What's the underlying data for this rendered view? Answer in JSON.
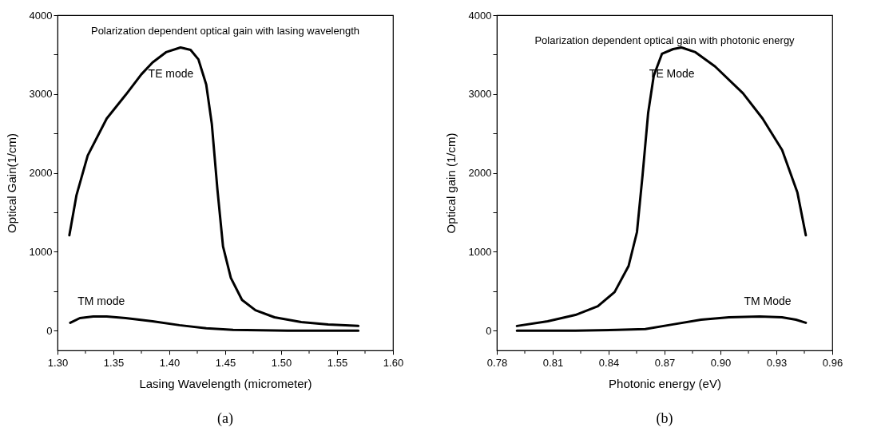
{
  "chart_data": [
    {
      "type": "line",
      "title": "Polarization dependent optical gain with lasing wavelength",
      "xlabel": "Lasing Wavelength (micrometer)",
      "ylabel": "Optical Gain(1/cm)",
      "series": [
        {
          "name": "TE mode",
          "color": "#000000",
          "x": [
            1.3106,
            1.317,
            1.327,
            1.344,
            1.361,
            1.375,
            1.385,
            1.397,
            1.41,
            1.419,
            1.426,
            1.433,
            1.438,
            1.443,
            1.448,
            1.455,
            1.465,
            1.477,
            1.494,
            1.518,
            1.542,
            1.569
          ],
          "values": [
            1210,
            1720,
            2220,
            2690,
            2990,
            3250,
            3400,
            3530,
            3590,
            3560,
            3440,
            3120,
            2620,
            1790,
            1070,
            670,
            390,
            260,
            170,
            110,
            80,
            60
          ]
        },
        {
          "name": "TM mode",
          "color": "#000000",
          "x": [
            1.3114,
            1.32,
            1.332,
            1.344,
            1.361,
            1.385,
            1.409,
            1.433,
            1.457,
            1.506,
            1.569
          ],
          "values": [
            100,
            160,
            180,
            180,
            160,
            120,
            70,
            30,
            10,
            0,
            0
          ]
        }
      ],
      "xlim": [
        1.3,
        1.6
      ],
      "ylim": [
        -250,
        4000
      ],
      "xticks": [
        {
          "value": 1.3,
          "label": "1.30"
        },
        {
          "value": 1.325,
          "label": null
        },
        {
          "value": 1.35,
          "label": "1.35"
        },
        {
          "value": 1.375,
          "label": null
        },
        {
          "value": 1.4,
          "label": "1.40"
        },
        {
          "value": 1.425,
          "label": null
        },
        {
          "value": 1.45,
          "label": "1.45"
        },
        {
          "value": 1.475,
          "label": null
        },
        {
          "value": 1.5,
          "label": "1.50"
        },
        {
          "value": 1.525,
          "label": null
        },
        {
          "value": 1.55,
          "label": "1.55"
        },
        {
          "value": 1.575,
          "label": null
        },
        {
          "value": 1.6,
          "label": "1.60"
        }
      ],
      "yticks": [
        0,
        {
          "value": 500,
          "label": null
        },
        1000,
        {
          "value": 1500,
          "label": null
        },
        2000,
        {
          "value": 2500,
          "label": null
        },
        3000,
        {
          "value": 3500,
          "label": null
        },
        4000
      ],
      "grid": false,
      "legend": false,
      "marker": "none",
      "line_style": "solid",
      "annotations": [
        "(a)"
      ]
    },
    {
      "type": "line",
      "title": "Polarization dependent optical gain with photonic energy",
      "xlabel": "Photonic energy (eV)",
      "ylabel": "Optical gain (1/cm)",
      "series": [
        {
          "name": "TE Mode",
          "color": "#000000",
          "x": [
            0.7908,
            0.8073,
            0.8222,
            0.8342,
            0.8432,
            0.8507,
            0.8552,
            0.8582,
            0.8612,
            0.8642,
            0.8686,
            0.8746,
            0.8791,
            0.8866,
            0.8971,
            0.9121,
            0.9226,
            0.9331,
            0.9413,
            0.9458
          ],
          "values": [
            60,
            120,
            200,
            310,
            490,
            820,
            1250,
            1970,
            2760,
            3230,
            3510,
            3570,
            3590,
            3530,
            3350,
            3010,
            2690,
            2290,
            1750,
            1210
          ]
        },
        {
          "name": "TM Mode",
          "color": "#000000",
          "x": [
            0.7908,
            0.8222,
            0.8445,
            0.8597,
            0.8746,
            0.8896,
            0.9046,
            0.921,
            0.933,
            0.9405,
            0.9458
          ],
          "values": [
            0,
            0,
            10,
            20,
            80,
            140,
            170,
            180,
            170,
            140,
            100
          ]
        }
      ],
      "xlim": [
        0.78,
        0.96
      ],
      "ylim": [
        -250,
        4000
      ],
      "xticks": [
        {
          "value": 0.78,
          "label": "0.78"
        },
        {
          "value": 0.795,
          "label": null
        },
        {
          "value": 0.81,
          "label": "0.81"
        },
        {
          "value": 0.825,
          "label": null
        },
        {
          "value": 0.84,
          "label": "0.84"
        },
        {
          "value": 0.855,
          "label": null
        },
        {
          "value": 0.87,
          "label": "0.87"
        },
        {
          "value": 0.885,
          "label": null
        },
        {
          "value": 0.9,
          "label": "0.90"
        },
        {
          "value": 0.915,
          "label": null
        },
        {
          "value": 0.93,
          "label": "0.93"
        },
        {
          "value": 0.945,
          "label": null
        },
        {
          "value": 0.96,
          "label": "0.96"
        }
      ],
      "yticks": [
        0,
        {
          "value": 500,
          "label": null
        },
        1000,
        {
          "value": 1500,
          "label": null
        },
        2000,
        {
          "value": 2500,
          "label": null
        },
        3000,
        {
          "value": 3500,
          "label": null
        },
        4000
      ],
      "grid": false,
      "legend": false,
      "marker": "none",
      "line_style": "solid",
      "annotations": [
        "(b)"
      ]
    }
  ]
}
